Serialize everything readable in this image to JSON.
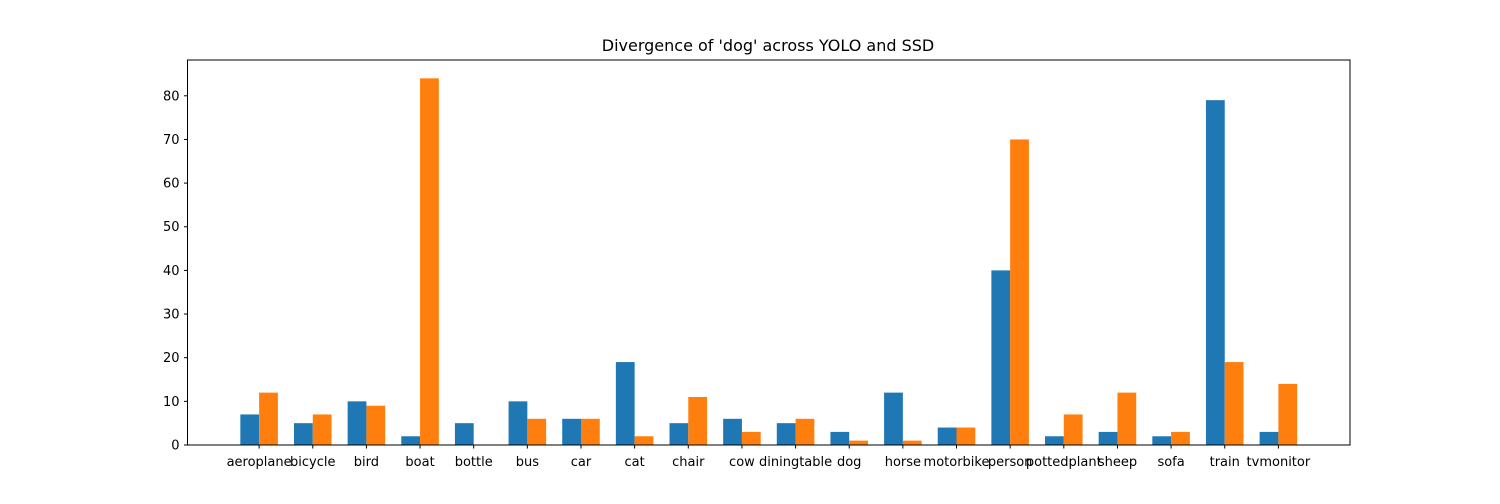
{
  "chart_data": {
    "type": "bar",
    "title": "Divergence of 'dog' across YOLO and SSD",
    "xlabel": "",
    "ylabel": "",
    "categories": [
      "aeroplane",
      "bicycle",
      "bird",
      "boat",
      "bottle",
      "bus",
      "car",
      "cat",
      "chair",
      "cow",
      "diningtable",
      "dog",
      "horse",
      "motorbike",
      "person",
      "pottedplant",
      "sheep",
      "sofa",
      "train",
      "tvmonitor"
    ],
    "series": [
      {
        "values": [
          7,
          5,
          10,
          2,
          5,
          10,
          6,
          19,
          5,
          6,
          5,
          3,
          12,
          4,
          40,
          2,
          3,
          2,
          79,
          3
        ],
        "color": "#1f77b4"
      },
      {
        "values": [
          12,
          7,
          9,
          84,
          0,
          6,
          6,
          2,
          11,
          3,
          6,
          1,
          1,
          4,
          70,
          7,
          12,
          3,
          19,
          14
        ],
        "color": "#ff7f0e"
      }
    ],
    "ylim": [
      0,
      88.2
    ],
    "yticks": [
      0,
      10,
      20,
      30,
      40,
      50,
      60,
      70,
      80
    ],
    "grid": false,
    "legend": "none"
  }
}
